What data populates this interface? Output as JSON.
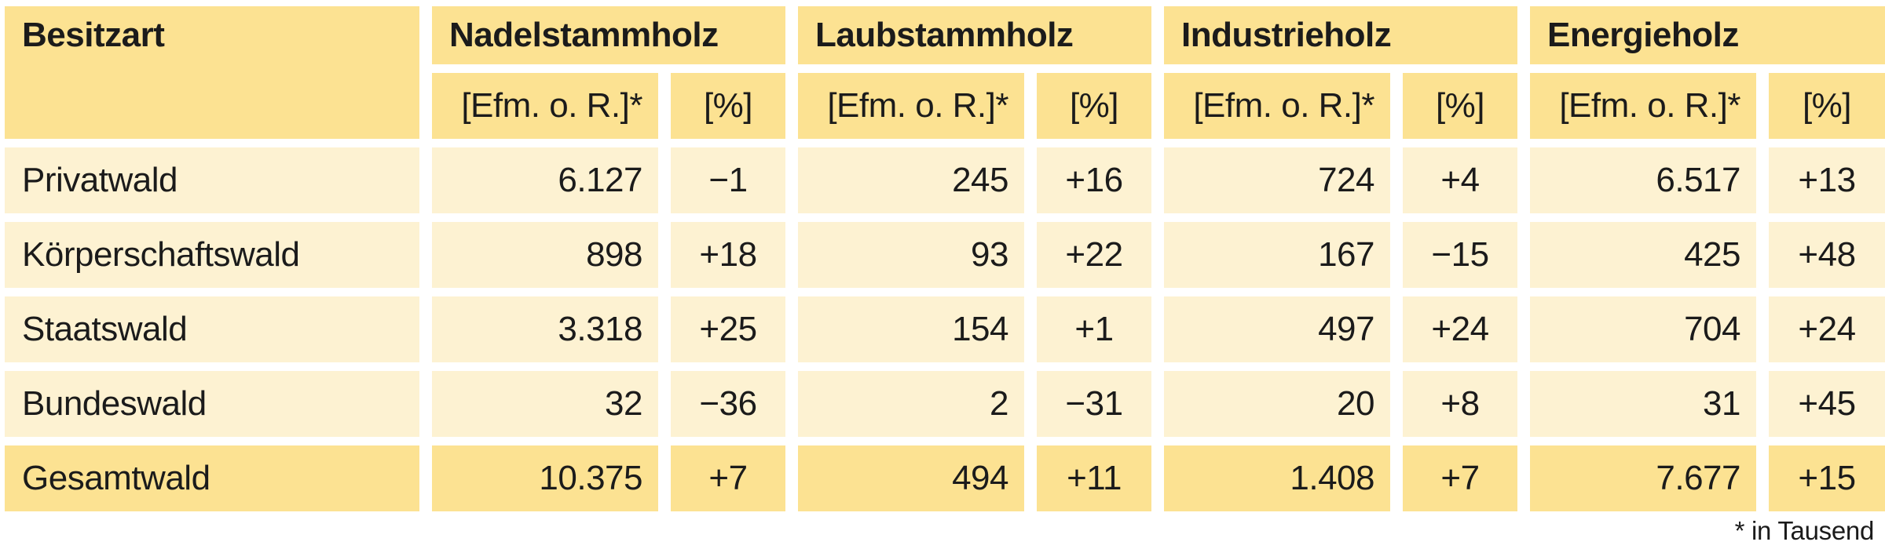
{
  "chart_data": {
    "type": "table",
    "title": "",
    "columns": [
      "Besitzart",
      "Nadelstammholz [Efm. o. R.]*",
      "Nadelstammholz [%]",
      "Laubstammholz [Efm. o. R.]*",
      "Laubstammholz [%]",
      "Industrieholz [Efm. o. R.]*",
      "Industrieholz [%]",
      "Energieholz [Efm. o. R.]*",
      "Energieholz [%]"
    ],
    "rows": [
      [
        "Privatwald",
        6127,
        -1,
        245,
        16,
        724,
        4,
        6517,
        13
      ],
      [
        "Körperschaftswald",
        898,
        18,
        93,
        22,
        167,
        -15,
        425,
        48
      ],
      [
        "Staatswald",
        3318,
        25,
        154,
        1,
        497,
        24,
        704,
        24
      ],
      [
        "Bundeswald",
        32,
        -36,
        2,
        -31,
        20,
        8,
        31,
        45
      ],
      [
        "Gesamtwald",
        10375,
        7,
        494,
        11,
        1408,
        7,
        7677,
        15
      ]
    ],
    "footnote": "* in Tausend",
    "layout_hints": "amounts in thousands Efm o. R., percent = change vs previous period"
  },
  "table": {
    "corner_header": "Besitzart",
    "groups": [
      {
        "label": "Nadelstammholz"
      },
      {
        "label": "Laubstammholz"
      },
      {
        "label": "Industrieholz"
      },
      {
        "label": "Energieholz"
      }
    ],
    "subheaders": {
      "amount": "[Efm. o. R.]*",
      "percent": "[%]"
    },
    "rows": [
      {
        "label": "Privatwald",
        "values": [
          "6.127",
          "−1",
          "245",
          "+16",
          "724",
          "+4",
          "6.517",
          "+13"
        ]
      },
      {
        "label": "Körperschaftswald",
        "values": [
          "898",
          "+18",
          "93",
          "+22",
          "167",
          "−15",
          "425",
          "+48"
        ]
      },
      {
        "label": "Staatswald",
        "values": [
          "3.318",
          "+25",
          "154",
          "+1",
          "497",
          "+24",
          "704",
          "+24"
        ]
      },
      {
        "label": "Bundeswald",
        "values": [
          "32",
          "−36",
          "2",
          "−31",
          "20",
          "+8",
          "31",
          "+45"
        ]
      },
      {
        "label": "Gesamtwald",
        "values": [
          "10.375",
          "+7",
          "494",
          "+11",
          "1.408",
          "+7",
          "7.677",
          "+15"
        ]
      }
    ],
    "footnote": "* in Tausend"
  },
  "colors": {
    "header_bg": "#FCE292",
    "row_bg": "#FDF2D2",
    "text": "#1B1B1B",
    "page_bg": "#FFFFFF"
  }
}
